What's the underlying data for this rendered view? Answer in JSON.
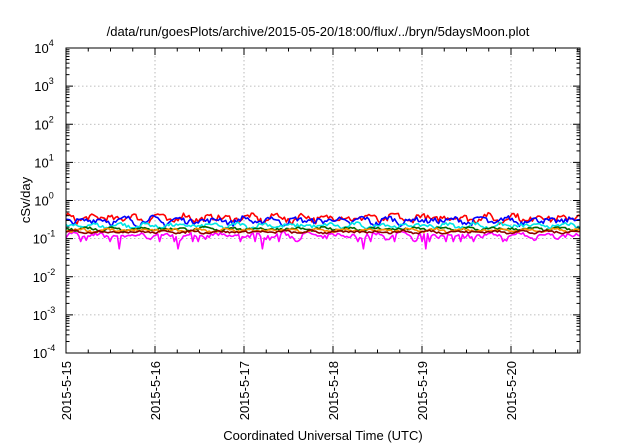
{
  "chart_data": {
    "type": "line",
    "title": "/data/run/goesPlots/archive/2015-05-20/18:00/flux/../bryn/5daysMoon.plot",
    "xlabel": "Coordinated Universal Time (UTC)",
    "ylabel": "cSv/day",
    "y_scale": "log",
    "ylim": [
      0.0001,
      10000
    ],
    "xlim": [
      "2015-05-15",
      "2015-05-20 18:00"
    ],
    "x_tick_labels": [
      "2015-5-15",
      "2015-5-16",
      "2015-5-17",
      "2015-5-18",
      "2015-5-19",
      "2015-5-20"
    ],
    "y_tick_labels": [
      {
        "base": "10",
        "exp": "-4"
      },
      {
        "base": "10",
        "exp": "-3"
      },
      {
        "base": "10",
        "exp": "-2"
      },
      {
        "base": "10",
        "exp": "-1"
      },
      {
        "base": "10",
        "exp": "0"
      },
      {
        "base": "10",
        "exp": "1"
      },
      {
        "base": "10",
        "exp": "2"
      },
      {
        "base": "10",
        "exp": "3"
      },
      {
        "base": "10",
        "exp": "4"
      }
    ],
    "grid": true,
    "series": [
      {
        "color": "#ff00ff",
        "base": 0.12,
        "var": 0.18,
        "dips": [
          0.6,
          1.25,
          2.2,
          3.35,
          4.05
        ]
      },
      {
        "color": "#ff0000",
        "base": 0.35,
        "var": 0.25,
        "dips": []
      },
      {
        "color": "#0000ff",
        "base": 0.3,
        "var": 0.22,
        "dips": []
      },
      {
        "color": "#00e5e5",
        "base": 0.22,
        "var": 0.15,
        "dips": []
      },
      {
        "color": "#006400",
        "base": 0.18,
        "var": 0.1,
        "dips": []
      },
      {
        "color": "#ff8c00",
        "base": 0.165,
        "var": 0.1,
        "dips": []
      },
      {
        "color": "#8b0000",
        "base": 0.15,
        "var": 0.08,
        "dips": []
      }
    ]
  }
}
